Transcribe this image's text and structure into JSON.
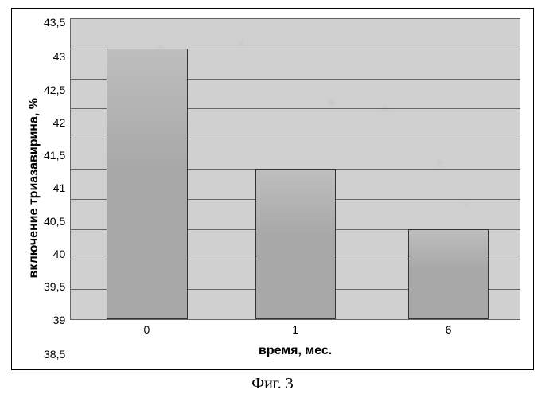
{
  "chart": {
    "type": "bar",
    "categories": [
      "0",
      "1",
      "6"
    ],
    "values": [
      43,
      41,
      40
    ],
    "ylim": [
      38.5,
      43.5
    ],
    "ytick_step": 0.5,
    "y_ticks": [
      "43,5",
      "43",
      "42,5",
      "42",
      "41,5",
      "41",
      "40,5",
      "40",
      "39,5",
      "39",
      "38,5"
    ],
    "y_label": "включение триазавирина, %",
    "x_label": "время, мес.",
    "bar_color": "#a8a8a8",
    "bar_border_color": "#333333",
    "plot_background": "#d0d0d0",
    "grid_color": "#666666",
    "axis_color": "#666666",
    "tick_fontsize": 14,
    "label_fontsize": 16,
    "caption": "Фиг. 3",
    "caption_fontsize": 20,
    "bar_width_pct": 18,
    "bar_positions_pct": [
      8,
      41,
      75
    ]
  }
}
